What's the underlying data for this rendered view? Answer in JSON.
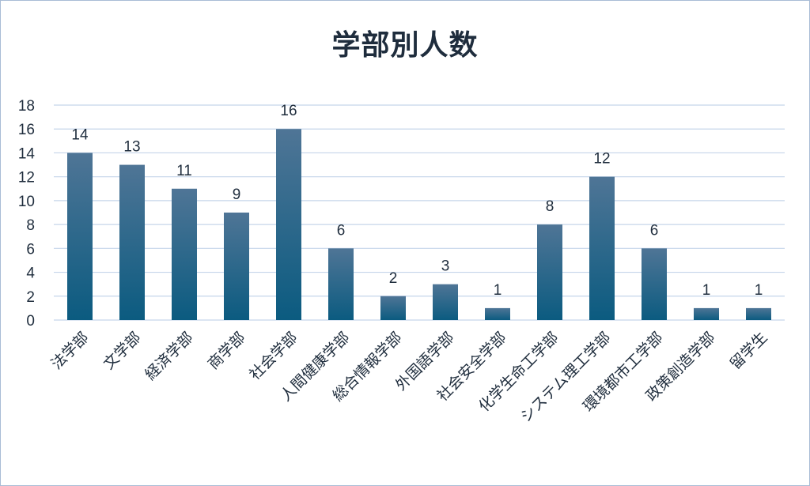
{
  "chart_data": {
    "type": "bar",
    "title": "学部別人数",
    "xlabel": "",
    "ylabel": "",
    "categories": [
      "法学部",
      "文学部",
      "経済学部",
      "商学部",
      "社会学部",
      "人間健康学部",
      "総合情報学部",
      "外国語学部",
      "社会安全学部",
      "化学生命工学部",
      "システム理工学部",
      "環境都市工学部",
      "政策創造学部",
      "留学生"
    ],
    "values": [
      14,
      13,
      11,
      9,
      16,
      6,
      2,
      3,
      1,
      8,
      12,
      6,
      1,
      1
    ],
    "ylim": [
      0,
      18
    ],
    "yticks": [
      0,
      2,
      4,
      6,
      8,
      10,
      12,
      14,
      16,
      18
    ],
    "grid": true,
    "data_labels": true,
    "legend": "none",
    "colors": {
      "bar_top": "#4f7596",
      "bar_bottom": "#0b5b80",
      "grid": "#c5d5ea",
      "text": "#1f2d3d"
    }
  }
}
